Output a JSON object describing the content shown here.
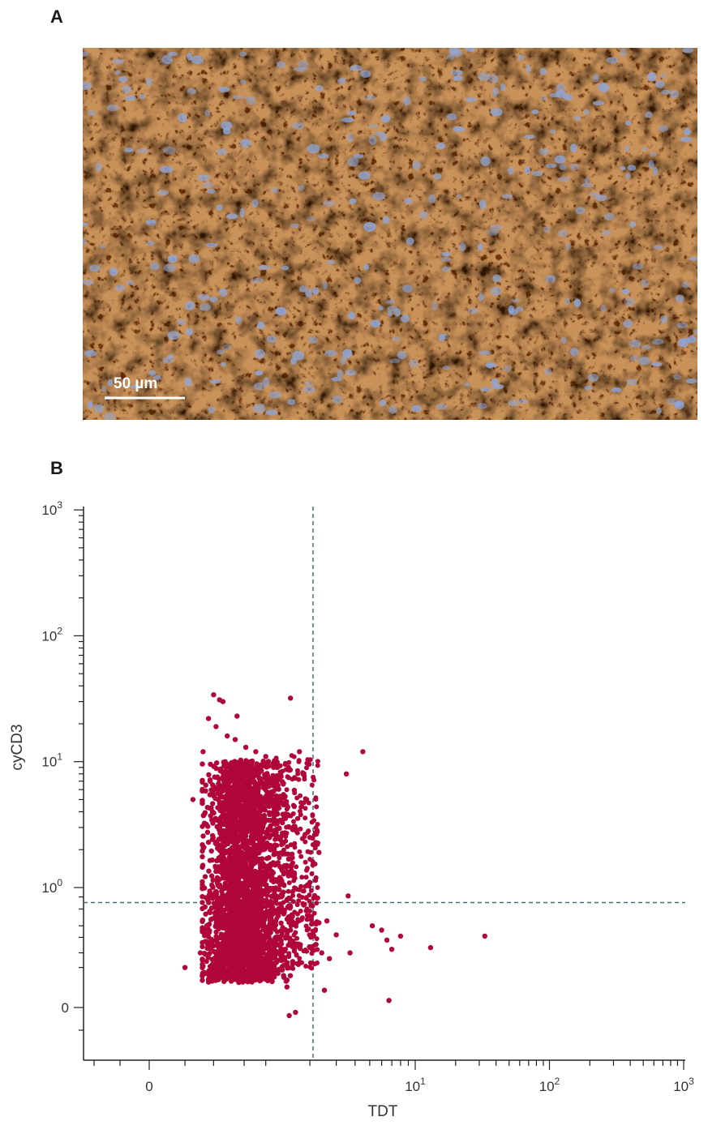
{
  "panels": {
    "a_label": "A",
    "b_label": "B"
  },
  "micrograph": {
    "scale_bar_label": "50 µm",
    "colors": {
      "background": "#c9a67a",
      "stain_dark": "#3b1a08",
      "stain_mid": "#8a4a1c",
      "stain_light": "#c98a4a",
      "nuclei": "#8fa6d8"
    }
  },
  "chart_data": {
    "type": "scatter",
    "title": "",
    "xlabel": "TDT",
    "ylabel": "cyCD3",
    "x_scale": "biexponential",
    "y_scale": "biexponential",
    "xlim": [
      -0.3,
      1000
    ],
    "ylim": [
      -0.3,
      1000
    ],
    "x_ticks": [
      {
        "value": 0,
        "base": "0",
        "exp": ""
      },
      {
        "value": 10,
        "base": "10",
        "exp": "1"
      },
      {
        "value": 100,
        "base": "10",
        "exp": "2"
      },
      {
        "value": 1000,
        "base": "10",
        "exp": "3"
      }
    ],
    "y_ticks": [
      {
        "value": 0,
        "base": "0",
        "exp": ""
      },
      {
        "value": 1,
        "base": "10",
        "exp": "0"
      },
      {
        "value": 10,
        "base": "10",
        "exp": "1"
      },
      {
        "value": 100,
        "base": "10",
        "exp": "2"
      },
      {
        "value": 1000,
        "base": "10",
        "exp": "3"
      }
    ],
    "gates": {
      "x": 2.1,
      "y": 0.7
    },
    "grid": false,
    "point_color": "#b0063a",
    "gate_color": "#4a6a78",
    "main_cluster": {
      "x_range": [
        0.35,
        1.25
      ],
      "y_range": [
        0.08,
        10
      ],
      "n_points": 2800
    },
    "outliers": [
      {
        "x": 0.2,
        "y": 0.13
      },
      {
        "x": 0.25,
        "y": 5
      },
      {
        "x": 0.3,
        "y": 0.2
      },
      {
        "x": 0.32,
        "y": 12
      },
      {
        "x": 0.36,
        "y": 22
      },
      {
        "x": 0.4,
        "y": 34
      },
      {
        "x": 0.42,
        "y": 19
      },
      {
        "x": 0.45,
        "y": 31
      },
      {
        "x": 0.48,
        "y": 30
      },
      {
        "x": 0.52,
        "y": 16
      },
      {
        "x": 0.6,
        "y": 15
      },
      {
        "x": 0.62,
        "y": 23
      },
      {
        "x": 0.72,
        "y": 13
      },
      {
        "x": 0.85,
        "y": 12
      },
      {
        "x": 1.0,
        "y": 11
      },
      {
        "x": 1.2,
        "y": 9
      },
      {
        "x": 1.3,
        "y": 0.12
      },
      {
        "x": 1.4,
        "y": 0.06
      },
      {
        "x": 1.45,
        "y": -0.05
      },
      {
        "x": 1.48,
        "y": 32
      },
      {
        "x": 1.6,
        "y": -0.03
      },
      {
        "x": 1.7,
        "y": 12
      },
      {
        "x": 1.8,
        "y": 8
      },
      {
        "x": 1.9,
        "y": 5
      },
      {
        "x": 2.0,
        "y": 2.5
      },
      {
        "x": 2.0,
        "y": 1.1
      },
      {
        "x": 2.05,
        "y": 0.5
      },
      {
        "x": 2.1,
        "y": 0.35
      },
      {
        "x": 2.2,
        "y": 0.25
      },
      {
        "x": 2.3,
        "y": 0.43
      },
      {
        "x": 2.3,
        "y": 1.9
      },
      {
        "x": 2.4,
        "y": 0.2
      },
      {
        "x": 2.5,
        "y": 0.05
      },
      {
        "x": 2.6,
        "y": 0.45
      },
      {
        "x": 2.7,
        "y": 0.17
      },
      {
        "x": 3.0,
        "y": 0.32
      },
      {
        "x": 3.5,
        "y": 8
      },
      {
        "x": 3.6,
        "y": 0.82
      },
      {
        "x": 3.7,
        "y": 0.2
      },
      {
        "x": 4.5,
        "y": 12
      },
      {
        "x": 5.2,
        "y": 0.4
      },
      {
        "x": 6.0,
        "y": 0.36
      },
      {
        "x": 6.5,
        "y": 0.28
      },
      {
        "x": 6.7,
        "y": 0.02
      },
      {
        "x": 7.0,
        "y": 0.22
      },
      {
        "x": 8.0,
        "y": 0.31
      },
      {
        "x": 13.0,
        "y": 0.23
      },
      {
        "x": 33.0,
        "y": 0.31
      }
    ]
  }
}
